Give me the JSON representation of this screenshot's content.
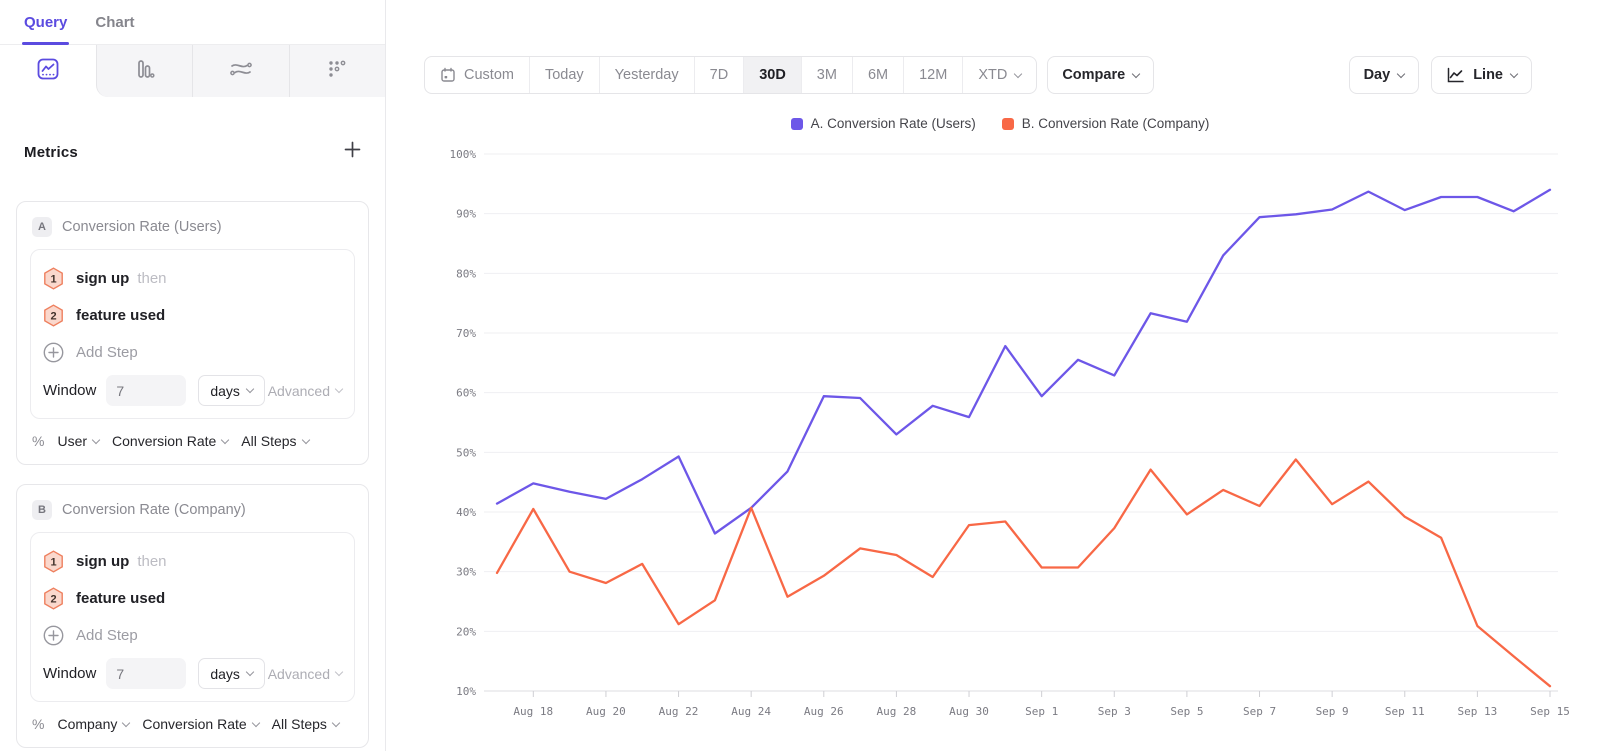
{
  "sidebar": {
    "tabs": [
      {
        "label": "Query",
        "active": true
      },
      {
        "label": "Chart",
        "active": false
      }
    ],
    "chart_type_tabs": [
      "line-chart",
      "bar-chart",
      "flow",
      "retention"
    ],
    "metrics": {
      "title": "Metrics",
      "add_icon": "plus"
    },
    "metric_cards": [
      {
        "badge": "A",
        "title": "Conversion Rate (Users)",
        "steps": [
          {
            "num": "1",
            "label": "sign up",
            "suffix": "then"
          },
          {
            "num": "2",
            "label": "feature used",
            "suffix": ""
          }
        ],
        "add_step_label": "Add Step",
        "window": {
          "label": "Window",
          "value": "7",
          "unit": "days",
          "advanced_label": "Advanced"
        },
        "footer": {
          "symbol": "%",
          "entity": "User",
          "measure": "Conversion Rate",
          "scope": "All Steps"
        }
      },
      {
        "badge": "B",
        "title": "Conversion Rate (Company)",
        "steps": [
          {
            "num": "1",
            "label": "sign up",
            "suffix": "then"
          },
          {
            "num": "2",
            "label": "feature used",
            "suffix": ""
          }
        ],
        "add_step_label": "Add Step",
        "window": {
          "label": "Window",
          "value": "7",
          "unit": "days",
          "advanced_label": "Advanced"
        },
        "footer": {
          "symbol": "%",
          "entity": "Company",
          "measure": "Conversion Rate",
          "scope": "All Steps"
        }
      }
    ],
    "accent_color": "#5B4BE0",
    "step_badge": {
      "fill": "#FAD8CD",
      "border": "#EE805F"
    }
  },
  "toolbar": {
    "date_ranges": [
      {
        "label": "Custom",
        "icon": "calendar"
      },
      {
        "label": "Today"
      },
      {
        "label": "Yesterday"
      },
      {
        "label": "7D"
      },
      {
        "label": "30D",
        "active": true
      },
      {
        "label": "3M"
      },
      {
        "label": "6M"
      },
      {
        "label": "12M"
      },
      {
        "label": "XTD",
        "chevron": true
      }
    ],
    "compare_label": "Compare",
    "granularity_label": "Day",
    "chart_style_label": "Line"
  },
  "legend": [
    {
      "label": "A. Conversion Rate (Users)"
    },
    {
      "label": "B. Conversion Rate (Company)"
    }
  ],
  "chart_data": {
    "type": "line",
    "title": "",
    "xlabel": "",
    "ylabel": "",
    "ylim": [
      10,
      100
    ],
    "grid": true,
    "legend_position": "top-center",
    "y_ticks": [
      "100%",
      "90%",
      "80%",
      "70%",
      "60%",
      "50%",
      "40%",
      "30%",
      "20%",
      "10%"
    ],
    "x": [
      "Aug 17",
      "Aug 18",
      "Aug 19",
      "Aug 20",
      "Aug 21",
      "Aug 22",
      "Aug 23",
      "Aug 24",
      "Aug 25",
      "Aug 26",
      "Aug 27",
      "Aug 28",
      "Aug 29",
      "Aug 30",
      "Aug 31",
      "Sep 1",
      "Sep 2",
      "Sep 3",
      "Sep 4",
      "Sep 5",
      "Sep 6",
      "Sep 7",
      "Sep 8",
      "Sep 9",
      "Sep 10",
      "Sep 11",
      "Sep 12",
      "Sep 13",
      "Sep 14",
      "Sep 15"
    ],
    "x_labeled_every": 2,
    "series": [
      {
        "name": "A. Conversion Rate (Users)",
        "color": "#6D57E8",
        "values": [
          41.4,
          44.8,
          43.4,
          42.2,
          45.5,
          49.3,
          36.4,
          40.7,
          46.8,
          59.4,
          59.1,
          53.0,
          57.8,
          55.9,
          67.8,
          59.4,
          65.5,
          62.9,
          73.3,
          71.9,
          83.0,
          89.4,
          89.9,
          90.7,
          93.7,
          90.6,
          92.8,
          92.8,
          90.4,
          94.0
        ]
      },
      {
        "name": "B. Conversion Rate (Company)",
        "color": "#F86846",
        "values": [
          29.8,
          40.5,
          30.0,
          28.1,
          31.3,
          21.2,
          25.2,
          40.7,
          25.8,
          29.3,
          33.9,
          32.8,
          29.1,
          37.8,
          38.4,
          30.7,
          30.7,
          37.3,
          47.1,
          39.6,
          43.7,
          41.0,
          48.8,
          41.3,
          45.1,
          39.2,
          35.7,
          20.9,
          15.8,
          10.8
        ]
      }
    ]
  }
}
